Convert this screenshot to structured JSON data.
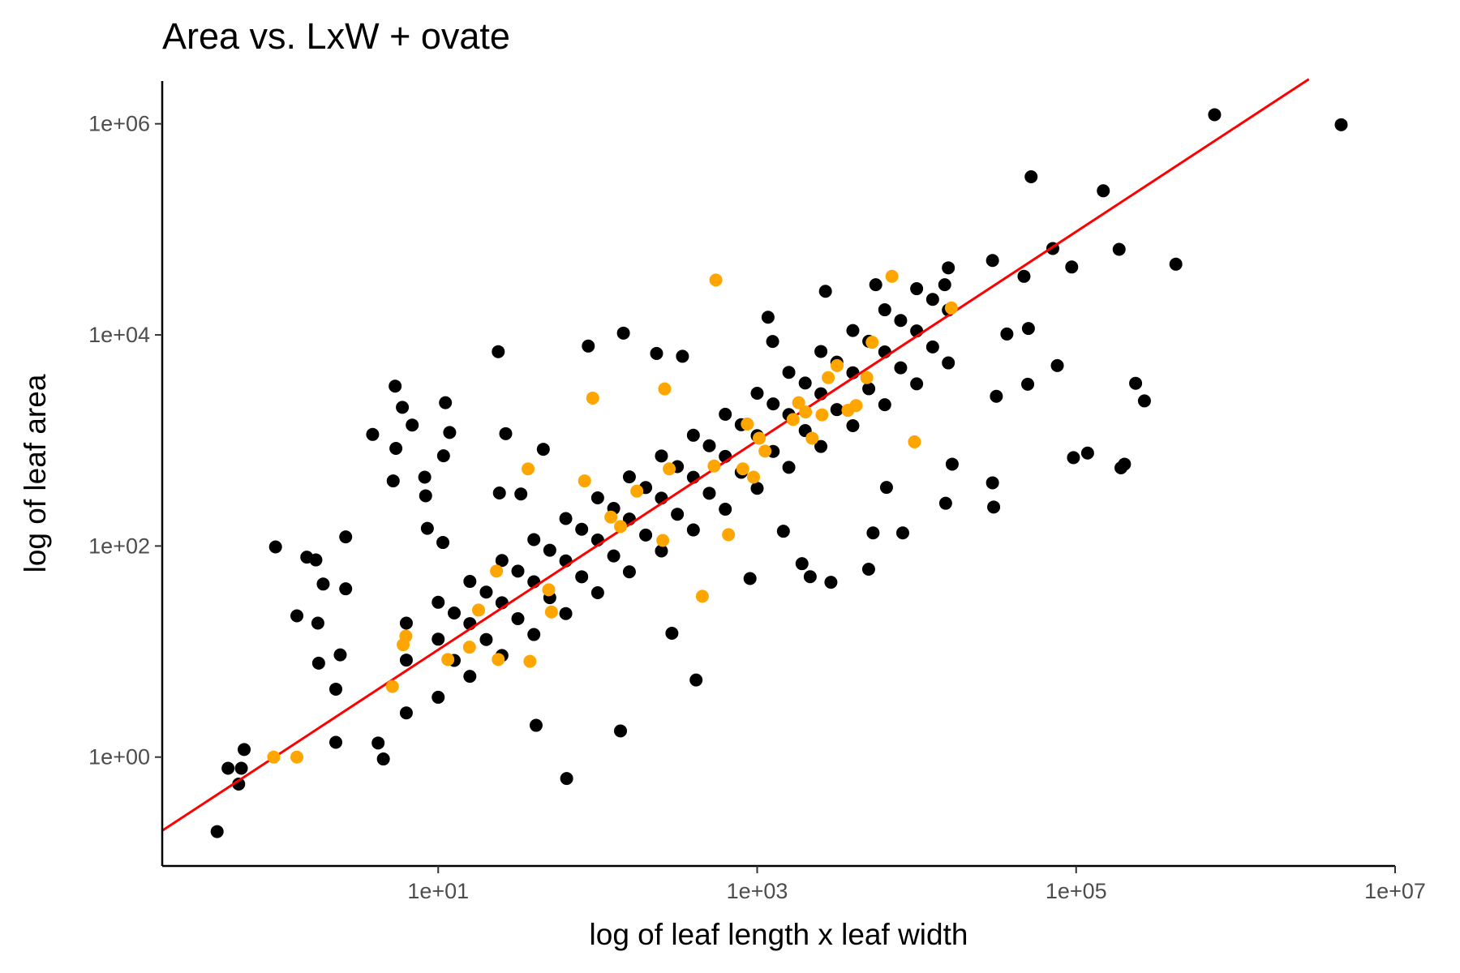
{
  "chart_data": {
    "type": "scatter",
    "title": "Area vs. LxW + ovate",
    "x_label": "log of leaf length x leaf width",
    "y_label": "log of leaf area",
    "x_log": true,
    "y_log": true,
    "grid": false,
    "xlim": [
      0.186,
      10000000
    ],
    "ylim": [
      0.093,
      2540000
    ],
    "xticks": [
      {
        "value": 10,
        "label": "1e+01"
      },
      {
        "value": 1000,
        "label": "1e+03"
      },
      {
        "value": 100000,
        "label": "1e+05"
      },
      {
        "value": 10000000,
        "label": "1e+07"
      }
    ],
    "yticks": [
      {
        "value": 1,
        "label": "1e+00"
      },
      {
        "value": 100,
        "label": "1e+02"
      },
      {
        "value": 10000,
        "label": "1e+04"
      },
      {
        "value": 1000000,
        "label": "1e+06"
      }
    ],
    "series": [
      {
        "type": "scatter",
        "color": "#000000",
        "x": [
          6.31,
          6.31,
          6.31,
          10,
          10,
          10,
          15.8,
          15.8,
          15.8,
          25.1,
          25.1,
          25.1,
          39.8,
          39.8,
          39.8,
          63.1,
          63.1,
          63.1,
          100,
          100,
          100,
          158,
          158,
          158,
          251,
          251,
          251,
          398,
          398,
          398,
          631,
          631,
          631,
          1000,
          1000,
          1000,
          1580,
          1580,
          1580,
          2510,
          2510,
          2510,
          3980,
          3980,
          3980,
          6310,
          6310,
          6310,
          10000,
          10000,
          10000,
          15800,
          15800,
          15800,
          12.6,
          12.6,
          20,
          20,
          31.6,
          31.6,
          50.1,
          50.1,
          79.4,
          79.4,
          126,
          126,
          200,
          200,
          316,
          316,
          501,
          501,
          794,
          794,
          1260,
          1260,
          2000,
          2000,
          3160,
          3160,
          5010,
          5010,
          7940,
          7940,
          12600,
          12600,
          0.411,
          0.481,
          0.561,
          0.583,
          0.607,
          0.955,
          1.3,
          1.76,
          1.5,
          1.71,
          1.9,
          2.63,
          2.63,
          2.43,
          2.28,
          1.78,
          2.28,
          3.88,
          4.2,
          4.53,
          5.37,
          5.43,
          5.22,
          5.96,
          6.87,
          8.23,
          8.34,
          8.55,
          10.7,
          11.1,
          11.8,
          10.8,
          26.5,
          23.8,
          24.2,
          33,
          45.6,
          63.9,
          87.3,
          145,
          139,
          41.1,
          414,
          234,
          340,
          292,
          1170,
          1250,
          2680,
          5540,
          15000,
          29900,
          47100,
          52200,
          71400,
          93800,
          148000,
          186000,
          422000,
          738000,
          4590000,
          76200,
          49700,
          31600,
          30400,
          29900,
          15200,
          16700,
          96200,
          118000,
          191000,
          201000,
          236000,
          268000,
          8180,
          5000,
          2900,
          2150,
          1910,
          902,
          1460,
          50200,
          36800,
          5330,
          6470
        ],
        "values": [
          2.62,
          8.3,
          18.6,
          3.69,
          13.1,
          29.3,
          5.82,
          18.4,
          46.2,
          9.18,
          29,
          72.9,
          14.5,
          45.8,
          115,
          22.9,
          72.3,
          182,
          36.1,
          114,
          286,
          56.9,
          180,
          452,
          89.7,
          284,
          713,
          142,
          448,
          1120,
          223,
          706,
          1770,
          352,
          1110,
          2800,
          556,
          1760,
          4420,
          877,
          2770,
          6970,
          1380,
          4380,
          11000,
          2180,
          6900,
          17300,
          3440,
          10900,
          27400,
          5430,
          17200,
          43200,
          8.24,
          23.2,
          13,
          36.6,
          20.5,
          57.8,
          32.4,
          91.2,
          51.1,
          144,
          80.5,
          227,
          127,
          358,
          200,
          565,
          316,
          891,
          499,
          1410,
          787,
          2220,
          1240,
          3500,
          1960,
          5520,
          3090,
          8710,
          4880,
          13700,
          7690,
          21700,
          0.197,
          0.784,
          0.555,
          0.784,
          1.18,
          98,
          21.8,
          18.6,
          78.4,
          73.8,
          43.6,
          122,
          39.3,
          9.31,
          4.4,
          7.76,
          1.38,
          1140,
          1.36,
          0.96,
          3270,
          841,
          414,
          2060,
          1400,
          449,
          299,
          147,
          108,
          2280,
          1190,
          716,
          1160,
          6940,
          318,
          311,
          825,
          0.627,
          7840,
          10400,
          1.77,
          2,
          5.38,
          6670,
          6270,
          14.9,
          14700,
          8670,
          25900,
          29900,
          29900,
          50700,
          35900,
          315000,
          65900,
          44000,
          232000,
          64700,
          46800,
          1220000,
          980000,
          5120,
          3410,
          2620,
          234,
          397,
          254,
          596,
          687,
          760,
          550,
          596,
          3480,
          2370,
          133,
          60.3,
          45.3,
          51.2,
          68,
          49.2,
          138,
          11500,
          10200,
          133,
          359
        ]
      },
      {
        "type": "line",
        "color": "#ff0000",
        "x": [
          0.186,
          2880000
        ],
        "values": [
          0.201,
          2650000
        ]
      },
      {
        "type": "scatter",
        "color": "#ffa500",
        "x": [
          0.93,
          1.3,
          5.16,
          6.03,
          6.27,
          11.5,
          15.7,
          17.9,
          23.8,
          23.2,
          37.6,
          36.6,
          49.3,
          51.3,
          82.8,
          93.1,
          121,
          139,
          176,
          256,
          263,
          281,
          453,
          537,
          551,
          661,
          813,
          867,
          949,
          1030,
          1120,
          1680,
          1820,
          2010,
          2210,
          2550,
          2790,
          3170,
          3710,
          4170,
          4870,
          5260,
          7000,
          9690,
          16500
        ],
        "values": [
          1,
          1,
          4.67,
          11.6,
          14,
          8.41,
          11,
          24.7,
          8.41,
          57.8,
          8.08,
          538,
          38.5,
          23.7,
          414,
          2520,
          188,
          153,
          331,
          113,
          3080,
          538,
          33.4,
          573,
          33100,
          128,
          538,
          1430,
          449,
          1050,
          792,
          1580,
          2280,
          1860,
          1050,
          1750,
          3940,
          5120,
          1930,
          2140,
          3940,
          8510,
          35900,
          970,
          18000
        ]
      }
    ]
  }
}
